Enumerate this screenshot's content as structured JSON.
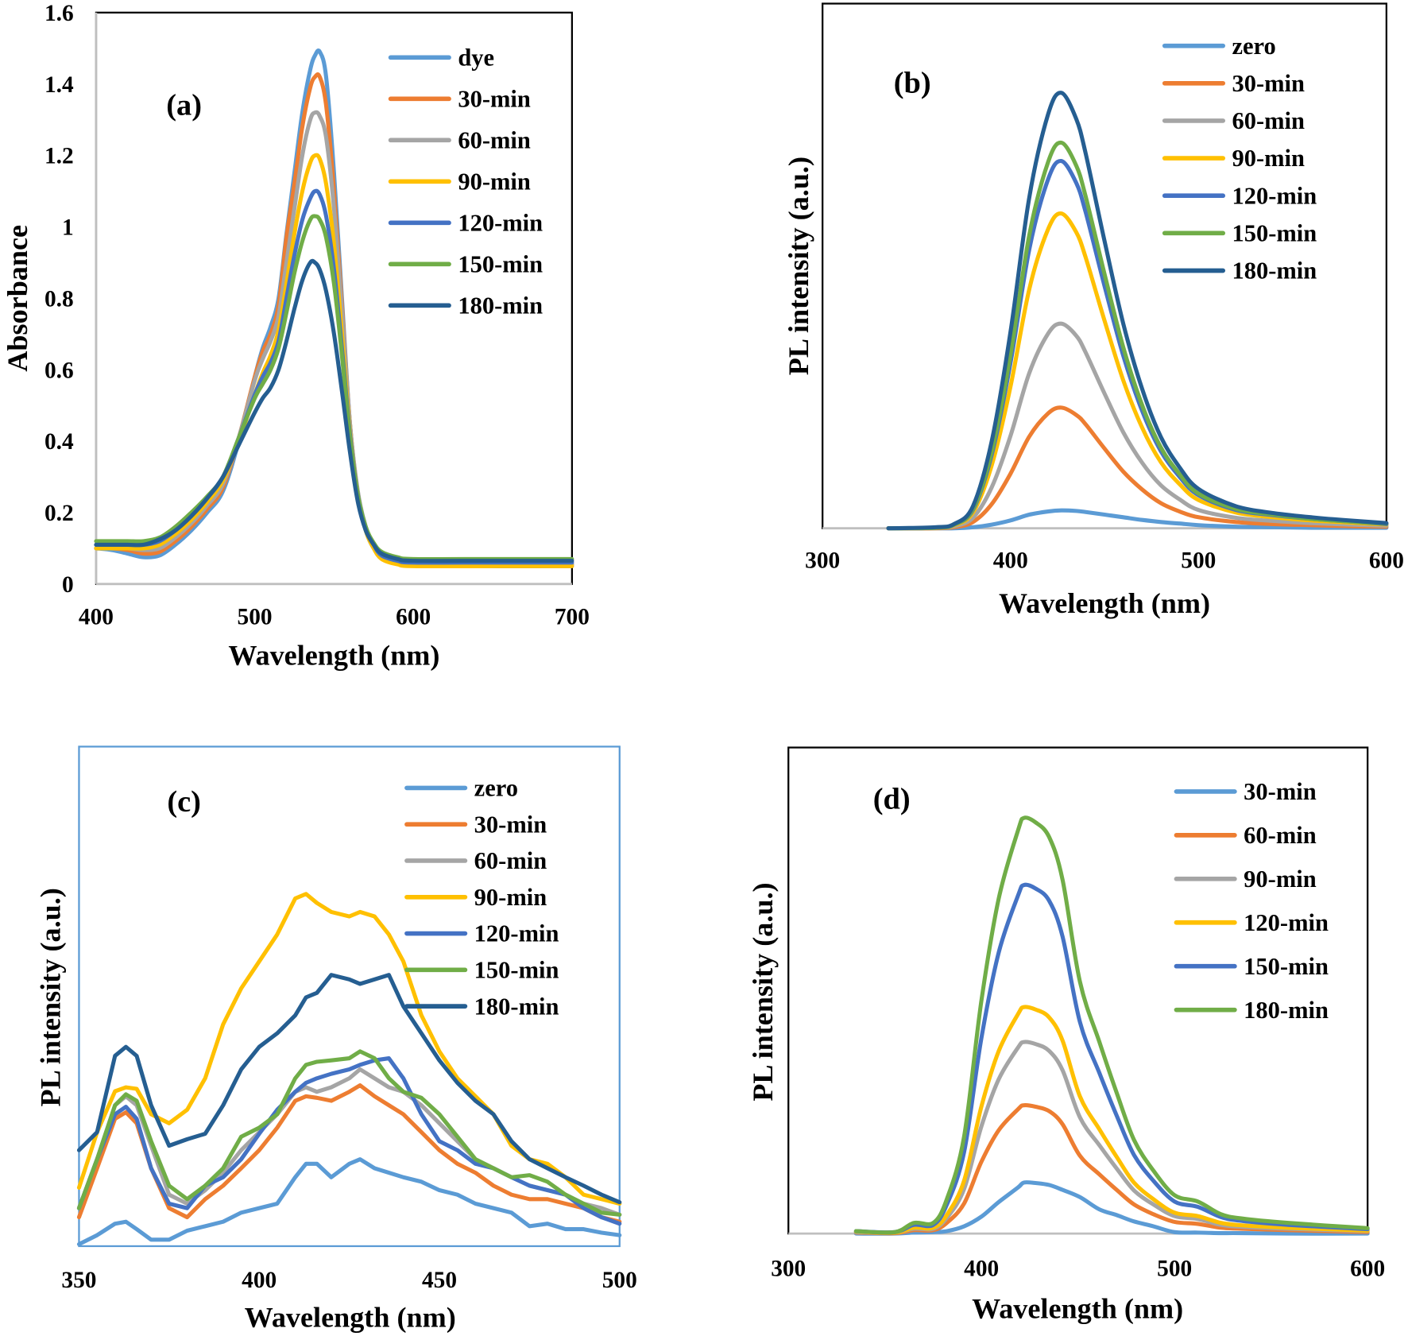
{
  "colors": {
    "lightblue": "#5B9BD5",
    "orange": "#ED7D31",
    "gray": "#A5A5A5",
    "yellow": "#FFC000",
    "blue": "#4472C4",
    "green": "#70AD47",
    "darkblue": "#255E91"
  },
  "chart_data": [
    {
      "panel": "(a)",
      "type": "line",
      "xlabel": "Wavelength (nm)",
      "ylabel": "Absorbance",
      "xlim": [
        400,
        700
      ],
      "ylim": [
        0,
        1.6
      ],
      "xticks": [
        "400",
        "500",
        "600",
        "700"
      ],
      "yticks": [
        "0",
        "0.2",
        "0.4",
        "0.6",
        "0.8",
        "1",
        "1.2",
        "1.4",
        "1.6"
      ],
      "legend": "top-right",
      "grid": false,
      "x": [
        400,
        410,
        420,
        430,
        440,
        450,
        460,
        470,
        480,
        490,
        500,
        505,
        510,
        515,
        520,
        525,
        530,
        535,
        538,
        541,
        545,
        550,
        555,
        560,
        565,
        570,
        575,
        580,
        590,
        600,
        650,
        700
      ],
      "series": [
        {
          "name": "dye",
          "color": "#5B9BD5",
          "values": [
            0.1,
            0.095,
            0.085,
            0.075,
            0.08,
            0.11,
            0.15,
            0.2,
            0.26,
            0.4,
            0.58,
            0.66,
            0.72,
            0.8,
            0.98,
            1.15,
            1.32,
            1.44,
            1.48,
            1.49,
            1.42,
            1.15,
            0.8,
            0.45,
            0.25,
            0.15,
            0.1,
            0.075,
            0.06,
            0.055,
            0.05,
            0.05
          ]
        },
        {
          "name": "30-min",
          "color": "#ED7D31",
          "values": [
            0.1,
            0.1,
            0.095,
            0.085,
            0.09,
            0.12,
            0.16,
            0.21,
            0.27,
            0.41,
            0.58,
            0.65,
            0.7,
            0.78,
            0.97,
            1.12,
            1.28,
            1.39,
            1.42,
            1.42,
            1.34,
            1.1,
            0.78,
            0.45,
            0.255,
            0.155,
            0.105,
            0.08,
            0.065,
            0.06,
            0.055,
            0.055
          ]
        },
        {
          "name": "60-min",
          "color": "#A5A5A5",
          "values": [
            0.1,
            0.1,
            0.1,
            0.095,
            0.1,
            0.13,
            0.17,
            0.22,
            0.28,
            0.41,
            0.57,
            0.63,
            0.68,
            0.75,
            0.9,
            1.05,
            1.2,
            1.3,
            1.32,
            1.31,
            1.25,
            1.05,
            0.76,
            0.45,
            0.26,
            0.16,
            0.11,
            0.08,
            0.065,
            0.06,
            0.055,
            0.055
          ]
        },
        {
          "name": "90-min",
          "color": "#FFC000",
          "values": [
            0.1,
            0.1,
            0.1,
            0.1,
            0.11,
            0.14,
            0.18,
            0.23,
            0.29,
            0.4,
            0.53,
            0.59,
            0.64,
            0.71,
            0.84,
            0.98,
            1.1,
            1.18,
            1.2,
            1.19,
            1.12,
            0.95,
            0.7,
            0.43,
            0.25,
            0.15,
            0.1,
            0.07,
            0.055,
            0.05,
            0.05,
            0.05
          ]
        },
        {
          "name": "120-min",
          "color": "#4472C4",
          "values": [
            0.11,
            0.11,
            0.11,
            0.11,
            0.12,
            0.15,
            0.19,
            0.24,
            0.3,
            0.41,
            0.53,
            0.58,
            0.62,
            0.68,
            0.8,
            0.92,
            1.02,
            1.08,
            1.1,
            1.09,
            1.03,
            0.88,
            0.66,
            0.42,
            0.25,
            0.16,
            0.11,
            0.08,
            0.065,
            0.06,
            0.06,
            0.06
          ]
        },
        {
          "name": "150-min",
          "color": "#70AD47",
          "values": [
            0.12,
            0.12,
            0.12,
            0.12,
            0.13,
            0.16,
            0.2,
            0.245,
            0.3,
            0.41,
            0.52,
            0.56,
            0.6,
            0.66,
            0.76,
            0.87,
            0.96,
            1.02,
            1.03,
            1.02,
            0.97,
            0.84,
            0.64,
            0.41,
            0.25,
            0.16,
            0.115,
            0.09,
            0.075,
            0.07,
            0.07,
            0.07
          ]
        },
        {
          "name": "180-min",
          "color": "#255E91",
          "values": [
            0.11,
            0.11,
            0.11,
            0.11,
            0.125,
            0.15,
            0.19,
            0.24,
            0.3,
            0.39,
            0.48,
            0.52,
            0.55,
            0.6,
            0.68,
            0.77,
            0.85,
            0.9,
            0.9,
            0.88,
            0.82,
            0.7,
            0.54,
            0.37,
            0.23,
            0.15,
            0.11,
            0.085,
            0.07,
            0.065,
            0.065,
            0.065
          ]
        }
      ]
    },
    {
      "panel": "(b)",
      "type": "line",
      "xlabel": "Wavelength (nm)",
      "ylabel": "PL intensity (a.u.)",
      "xlim": [
        300,
        600
      ],
      "ylim": [
        0,
        100
      ],
      "xticks": [
        "300",
        "400",
        "500",
        "600"
      ],
      "yticks": [],
      "legend": "top-right",
      "grid": false,
      "x": [
        335,
        360,
        370,
        380,
        390,
        400,
        410,
        420,
        427,
        435,
        440,
        450,
        460,
        470,
        480,
        490,
        500,
        520,
        540,
        560,
        580,
        600
      ],
      "series": [
        {
          "name": "zero",
          "color": "#5B9BD5",
          "values": [
            0,
            0,
            0,
            0.2,
            0.7,
            1.5,
            2.6,
            3.2,
            3.4,
            3.3,
            3.1,
            2.6,
            2.1,
            1.6,
            1.2,
            0.9,
            0.6,
            0.3,
            0.2,
            0.1,
            0.1,
            0.1
          ]
        },
        {
          "name": "30-min",
          "color": "#ED7D31",
          "values": [
            0,
            0,
            0.2,
            1.2,
            4.6,
            10.4,
            17.5,
            21.9,
            23,
            21.6,
            19.8,
            15.2,
            10.8,
            7.4,
            4.8,
            3.2,
            2.1,
            1.2,
            0.8,
            0.6,
            0.4,
            0.3
          ]
        },
        {
          "name": "60-min",
          "color": "#A5A5A5",
          "values": [
            0,
            0.1,
            0.4,
            2,
            7.8,
            17.6,
            29.6,
            37.1,
            39,
            36.7,
            33.5,
            25.7,
            18.3,
            12.5,
            8.2,
            5.5,
            3.5,
            2,
            1.4,
            1,
            0.7,
            0.5
          ]
        },
        {
          "name": "90-min",
          "color": "#FFC000",
          "values": [
            0,
            0.1,
            0.6,
            3,
            12,
            27,
            45.6,
            57,
            60,
            56.4,
            51.6,
            39.6,
            28.2,
            19.2,
            12.6,
            8.4,
            5.4,
            3,
            2.1,
            1.5,
            1.1,
            0.7
          ]
        },
        {
          "name": "120-min",
          "color": "#4472C4",
          "values": [
            0,
            0.1,
            0.7,
            3.5,
            14,
            31.5,
            53.2,
            66.5,
            70,
            65.8,
            60.2,
            46.2,
            32.9,
            22.4,
            14.7,
            9.8,
            6.3,
            3.5,
            2.5,
            1.8,
            1.3,
            0.8
          ]
        },
        {
          "name": "150-min",
          "color": "#70AD47",
          "values": [
            0,
            0.1,
            0.7,
            3.7,
            14.7,
            33.1,
            55.9,
            69.8,
            73.5,
            69.1,
            63.2,
            48.5,
            34.5,
            23.5,
            15.4,
            10.3,
            6.6,
            3.7,
            2.6,
            1.8,
            1.3,
            0.9
          ]
        },
        {
          "name": "180-min",
          "color": "#255E91",
          "values": [
            0,
            0.2,
            0.8,
            4.2,
            16.6,
            37.4,
            63.1,
            78.9,
            83,
            78,
            71.4,
            54.8,
            39,
            26.6,
            17.4,
            11.6,
            7.5,
            4.2,
            2.9,
            2.1,
            1.5,
            1
          ]
        }
      ]
    },
    {
      "panel": "(c)",
      "type": "line",
      "xlabel": "Wavelength (nm)",
      "ylabel": "PL intensity (a.u.)",
      "xlim": [
        350,
        500
      ],
      "ylim": [
        0,
        100
      ],
      "xticks": [
        "350",
        "400",
        "450",
        "500"
      ],
      "yticks": [],
      "legend": "top-right",
      "grid": false,
      "x": [
        350,
        355,
        360,
        363,
        366,
        370,
        375,
        380,
        385,
        390,
        395,
        400,
        405,
        410,
        413,
        416,
        420,
        425,
        428,
        432,
        436,
        440,
        445,
        450,
        455,
        460,
        465,
        470,
        475,
        480,
        485,
        490,
        495,
        500
      ],
      "series": [
        {
          "name": "zero",
          "color": "#5B9BD5",
          "values": [
            0.4,
            2.2,
            4.5,
            4.9,
            3.4,
            1.3,
            1.3,
            3.1,
            4,
            4.9,
            6.7,
            7.6,
            8.5,
            13.8,
            16.5,
            16.5,
            13.8,
            16.5,
            17.4,
            15.6,
            14.7,
            13.8,
            12.9,
            11.2,
            10.3,
            8.5,
            7.6,
            6.7,
            4,
            4.5,
            3.4,
            3.4,
            2.7,
            2.2
          ]
        },
        {
          "name": "30-min",
          "color": "#ED7D31",
          "values": [
            5.8,
            15.6,
            25.5,
            26.8,
            24.6,
            15.6,
            7.6,
            5.8,
            9.4,
            12.1,
            15.6,
            19.2,
            23.7,
            29.1,
            30,
            29.7,
            29.1,
            30.9,
            32.2,
            30,
            28.2,
            26.4,
            22.8,
            19.2,
            16.5,
            14.7,
            12.1,
            10.3,
            9.4,
            9.4,
            8.5,
            7.6,
            5.8,
            4.9
          ]
        },
        {
          "name": "60-min",
          "color": "#A5A5A5",
          "values": [
            7.6,
            17.4,
            28.2,
            30,
            28.2,
            20.1,
            10.3,
            8.5,
            11.2,
            14.7,
            19.2,
            22.8,
            26.4,
            30.9,
            31.8,
            30.9,
            31.8,
            33.6,
            35.4,
            33.6,
            31.8,
            30.9,
            28.2,
            24.6,
            21,
            17.4,
            15.6,
            13.8,
            12.1,
            11.2,
            10.3,
            8.5,
            7.6,
            6.3
          ]
        },
        {
          "name": "90-min",
          "color": "#FFC000",
          "values": [
            11.7,
            22.8,
            31,
            31.8,
            31.5,
            26.4,
            24.6,
            27.3,
            33.6,
            44.4,
            51.6,
            57,
            62.4,
            69.6,
            70.5,
            68.7,
            66.9,
            66,
            66.9,
            66,
            62.4,
            57,
            46.2,
            39,
            33.6,
            30,
            26.4,
            20.1,
            17.4,
            16.5,
            13.8,
            10.3,
            9.4,
            8.5
          ]
        },
        {
          "name": "120-min",
          "color": "#4472C4",
          "values": [
            7.6,
            17.4,
            26.4,
            27.9,
            25.5,
            15.6,
            8.5,
            7.6,
            12.1,
            13.8,
            17.4,
            22.5,
            27.3,
            30.9,
            32.7,
            33.6,
            34.5,
            35.4,
            36.3,
            37.2,
            37.6,
            33.6,
            26.4,
            21,
            19.2,
            16.5,
            15.6,
            13.8,
            12.1,
            11.2,
            10.3,
            7.6,
            5.8,
            4.5
          ]
        },
        {
          "name": "150-min",
          "color": "#70AD47",
          "values": [
            7.6,
            17.4,
            28.2,
            30.4,
            29.1,
            21,
            12.1,
            9.4,
            12.1,
            15.6,
            21.9,
            23.7,
            26.4,
            33.6,
            36.3,
            36.9,
            37.2,
            37.6,
            39,
            37.6,
            33.6,
            30.9,
            29.7,
            26.4,
            21.9,
            17.4,
            15.6,
            13.8,
            14.2,
            12.9,
            10.3,
            8.5,
            6.7,
            6.3
          ]
        },
        {
          "name": "180-min",
          "color": "#255E91",
          "values": [
            19.2,
            22.8,
            38.1,
            39.9,
            38.1,
            28.2,
            20.1,
            21.4,
            22.5,
            28.2,
            35.4,
            39.9,
            42.6,
            46.2,
            49.8,
            50.7,
            54.3,
            53.4,
            52.5,
            53.4,
            54.3,
            48,
            42.6,
            37.2,
            32.7,
            29.1,
            26.4,
            21,
            17.4,
            15.6,
            13.8,
            12.1,
            10.3,
            8.8
          ]
        }
      ]
    },
    {
      "panel": "(d)",
      "type": "line",
      "xlabel": "Wavelength (nm)",
      "ylabel": "PL intensity (a.u.)",
      "xlim": [
        300,
        600
      ],
      "ylim": [
        0,
        100
      ],
      "xticks": [
        "300",
        "400",
        "500",
        "600"
      ],
      "yticks": [],
      "legend": "top-right",
      "grid": false,
      "x": [
        335,
        355,
        365,
        375,
        382,
        391,
        400,
        409,
        419,
        422,
        428,
        435,
        442,
        451,
        461,
        470,
        479,
        489,
        500,
        512,
        524,
        535,
        559,
        600
      ],
      "series": [
        {
          "name": "30-min",
          "color": "#5B9BD5",
          "values": [
            0,
            0,
            0.2,
            0.3,
            0.5,
            1.5,
            3.5,
            6.5,
            9.5,
            10.5,
            10.4,
            10,
            9,
            7.5,
            5,
            3.8,
            2.5,
            1.5,
            0.3,
            0.2,
            0.1,
            0.1,
            0,
            0
          ]
        },
        {
          "name": "60-min",
          "color": "#ED7D31",
          "values": [
            0.2,
            0.1,
            0.7,
            0.7,
            2.2,
            6.2,
            14.8,
            21.3,
            25.6,
            26.4,
            26.1,
            25.2,
            22.5,
            16,
            12.2,
            9,
            6,
            4,
            2.4,
            2,
            1.2,
            1,
            0.7,
            0.3
          ]
        },
        {
          "name": "90-min",
          "color": "#A5A5A5",
          "values": [
            0.3,
            0.2,
            1,
            1,
            3.2,
            9.2,
            22.1,
            31.8,
            38.3,
            39.4,
            39,
            37.6,
            33.6,
            23.9,
            18.2,
            13.4,
            8.9,
            6,
            3.6,
            3,
            1.8,
            1.4,
            1,
            0.5
          ]
        },
        {
          "name": "120-min",
          "color": "#FFC000",
          "values": [
            0.4,
            0.2,
            1.2,
            1.2,
            3.8,
            10.9,
            26.2,
            37.6,
            45.2,
            46.6,
            46.1,
            44.5,
            39.7,
            28.2,
            21.5,
            15.8,
            10.5,
            7.1,
            4.3,
            3.6,
            2.2,
            1.7,
            1.2,
            0.6
          ]
        },
        {
          "name": "150-min",
          "color": "#4472C4",
          "values": [
            0.5,
            0.3,
            1.8,
            1.8,
            5.9,
            16.8,
            40.3,
            57.9,
            69.6,
            71.7,
            71,
            68.5,
            61.1,
            43.5,
            33.1,
            24.3,
            16.2,
            10.9,
            6.6,
            5.5,
            3.4,
            2.6,
            1.8,
            0.9
          ]
        },
        {
          "name": "180-min",
          "color": "#70AD47",
          "values": [
            0.5,
            0.3,
            2.2,
            2.2,
            7,
            20,
            48,
            69,
            83,
            85.5,
            84.6,
            81.6,
            72.8,
            51.8,
            39.5,
            29,
            19.3,
            13,
            7.9,
            6.6,
            4,
            3.1,
            2.2,
            1.1
          ]
        }
      ]
    }
  ]
}
